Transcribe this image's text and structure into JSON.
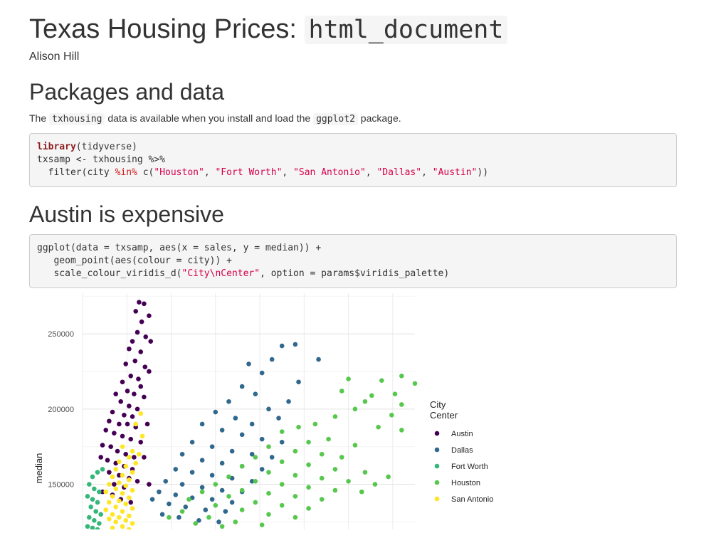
{
  "document": {
    "title": "Texas Housing Prices: ",
    "title_code": "html_document",
    "author": "Alison Hill"
  },
  "section1": {
    "heading": "Packages and data",
    "para_prefix": "The ",
    "para_code1": "txhousing",
    "para_mid": " data is available when you install and load the ",
    "para_code2": "ggplot2",
    "para_suffix": " package.",
    "code": {
      "line1_kw": "library",
      "line1_rest": "(tidyverse)",
      "line2": "txsamp <- txhousing %>%",
      "line3_a": "  filter(city ",
      "line3_in": "%in%",
      "line3_b": " c(",
      "s1": "\"Houston\"",
      "s2": "\"Fort Worth\"",
      "s3": "\"San Antonio\"",
      "s4": "\"Dallas\"",
      "s5": "\"Austin\"",
      "sep": ", ",
      "end": "))"
    }
  },
  "section2": {
    "heading": "Austin is expensive",
    "code": {
      "line1": "ggplot(data = txsamp, aes(x = sales, y = median)) +",
      "line2": "   geom_point(aes(colour = city)) +",
      "line3_a": "   scale_colour_viridis_d(",
      "line3_str": "\"City\\nCenter\"",
      "line3_b": ", option = params$viridis_palette)"
    }
  },
  "chart_data": {
    "type": "scatter",
    "title": "",
    "xlabel": "",
    "ylabel": "median",
    "ylim": [
      120000,
      277000
    ],
    "xlim": [
      0,
      1000
    ],
    "y_ticks": [
      150000,
      200000,
      250000
    ],
    "y_tick_labels": [
      "150000",
      "200000",
      "250000"
    ],
    "grid": true,
    "legend_title": "City\nCenter",
    "legend_title_lines": [
      "City",
      "Center"
    ],
    "legend_position": "right",
    "series": [
      {
        "name": "Austin",
        "color": "#440154",
        "points": [
          [
            160,
            265000
          ],
          [
            170,
            271000
          ],
          [
            185,
            270000
          ],
          [
            200,
            262000
          ],
          [
            178,
            258000
          ],
          [
            165,
            251000
          ],
          [
            190,
            248000
          ],
          [
            150,
            245000
          ],
          [
            140,
            240000
          ],
          [
            175,
            238000
          ],
          [
            205,
            245000
          ],
          [
            158,
            232000
          ],
          [
            130,
            230000
          ],
          [
            188,
            228000
          ],
          [
            145,
            222000
          ],
          [
            200,
            225000
          ],
          [
            168,
            220000
          ],
          [
            120,
            218000
          ],
          [
            175,
            215000
          ],
          [
            135,
            212000
          ],
          [
            155,
            210000
          ],
          [
            185,
            208000
          ],
          [
            100,
            210000
          ],
          [
            115,
            205000
          ],
          [
            140,
            202000
          ],
          [
            165,
            200000
          ],
          [
            90,
            198000
          ],
          [
            125,
            196000
          ],
          [
            150,
            195000
          ],
          [
            80,
            192000
          ],
          [
            110,
            190000
          ],
          [
            135,
            190000
          ],
          [
            160,
            188000
          ],
          [
            195,
            190000
          ],
          [
            70,
            186000
          ],
          [
            95,
            184000
          ],
          [
            120,
            182000
          ],
          [
            145,
            180000
          ],
          [
            175,
            178000
          ],
          [
            60,
            176000
          ],
          [
            85,
            175000
          ],
          [
            105,
            172000
          ],
          [
            130,
            170000
          ],
          [
            155,
            168000
          ],
          [
            185,
            168000
          ],
          [
            55,
            168000
          ],
          [
            75,
            166000
          ],
          [
            100,
            164000
          ],
          [
            125,
            162000
          ],
          [
            150,
            160000
          ],
          [
            80,
            158000
          ],
          [
            110,
            156000
          ],
          [
            140,
            154000
          ],
          [
            165,
            152000
          ],
          [
            200,
            150000
          ],
          [
            95,
            150000
          ],
          [
            125,
            148000
          ],
          [
            60,
            145000
          ],
          [
            90,
            143000
          ],
          [
            115,
            140000
          ],
          [
            145,
            138000
          ]
        ]
      },
      {
        "name": "Dallas",
        "color": "#31688e",
        "points": [
          [
            600,
            242000
          ],
          [
            640,
            243000
          ],
          [
            570,
            233000
          ],
          [
            710,
            233000
          ],
          [
            500,
            230000
          ],
          [
            540,
            224000
          ],
          [
            650,
            218000
          ],
          [
            480,
            215000
          ],
          [
            520,
            210000
          ],
          [
            620,
            205000
          ],
          [
            440,
            205000
          ],
          [
            560,
            200000
          ],
          [
            400,
            198000
          ],
          [
            460,
            194000
          ],
          [
            590,
            194000
          ],
          [
            510,
            190000
          ],
          [
            360,
            190000
          ],
          [
            420,
            186000
          ],
          [
            480,
            183000
          ],
          [
            540,
            180000
          ],
          [
            600,
            178000
          ],
          [
            330,
            178000
          ],
          [
            390,
            175000
          ],
          [
            450,
            172000
          ],
          [
            510,
            170000
          ],
          [
            570,
            168000
          ],
          [
            300,
            170000
          ],
          [
            360,
            166000
          ],
          [
            420,
            164000
          ],
          [
            480,
            162000
          ],
          [
            540,
            160000
          ],
          [
            280,
            160000
          ],
          [
            330,
            158000
          ],
          [
            390,
            156000
          ],
          [
            450,
            154000
          ],
          [
            510,
            152000
          ],
          [
            250,
            152000
          ],
          [
            300,
            150000
          ],
          [
            360,
            148000
          ],
          [
            420,
            146000
          ],
          [
            480,
            145000
          ],
          [
            230,
            145000
          ],
          [
            280,
            143000
          ],
          [
            330,
            141000
          ],
          [
            390,
            140000
          ],
          [
            450,
            138000
          ],
          [
            210,
            140000
          ],
          [
            260,
            137000
          ],
          [
            310,
            135000
          ],
          [
            370,
            133000
          ],
          [
            430,
            132000
          ],
          [
            240,
            130000
          ],
          [
            290,
            128000
          ],
          [
            350,
            126000
          ],
          [
            410,
            125000
          ]
        ]
      },
      {
        "name": "Fort Worth",
        "color": "#35b779",
        "points": [
          [
            30,
            155000
          ],
          [
            45,
            158000
          ],
          [
            60,
            160000
          ],
          [
            20,
            150000
          ],
          [
            35,
            147000
          ],
          [
            50,
            145000
          ],
          [
            15,
            142000
          ],
          [
            30,
            140000
          ],
          [
            45,
            138000
          ],
          [
            25,
            135000
          ],
          [
            40,
            132000
          ],
          [
            55,
            130000
          ],
          [
            20,
            128000
          ],
          [
            35,
            126000
          ],
          [
            50,
            124000
          ],
          [
            15,
            122000
          ],
          [
            30,
            121000
          ],
          [
            45,
            120000
          ]
        ]
      },
      {
        "name": "Houston",
        "color": "#57c84d",
        "points": [
          [
            960,
            222000
          ],
          [
            1000,
            217000
          ],
          [
            900,
            219000
          ],
          [
            800,
            220000
          ],
          [
            940,
            210000
          ],
          [
            870,
            209000
          ],
          [
            780,
            212000
          ],
          [
            850,
            205000
          ],
          [
            960,
            203000
          ],
          [
            930,
            196000
          ],
          [
            820,
            200000
          ],
          [
            760,
            195000
          ],
          [
            700,
            190000
          ],
          [
            650,
            188000
          ],
          [
            890,
            188000
          ],
          [
            960,
            186000
          ],
          [
            600,
            185000
          ],
          [
            740,
            180000
          ],
          [
            680,
            178000
          ],
          [
            820,
            176000
          ],
          [
            560,
            175000
          ],
          [
            640,
            172000
          ],
          [
            720,
            170000
          ],
          [
            780,
            168000
          ],
          [
            520,
            168000
          ],
          [
            600,
            165000
          ],
          [
            680,
            163000
          ],
          [
            760,
            160000
          ],
          [
            850,
            158000
          ],
          [
            480,
            162000
          ],
          [
            560,
            158000
          ],
          [
            640,
            156000
          ],
          [
            720,
            154000
          ],
          [
            800,
            152000
          ],
          [
            880,
            150000
          ],
          [
            440,
            155000
          ],
          [
            520,
            152000
          ],
          [
            600,
            150000
          ],
          [
            680,
            148000
          ],
          [
            760,
            146000
          ],
          [
            840,
            145000
          ],
          [
            920,
            155000
          ],
          [
            400,
            150000
          ],
          [
            480,
            146000
          ],
          [
            560,
            144000
          ],
          [
            640,
            142000
          ],
          [
            720,
            140000
          ],
          [
            360,
            145000
          ],
          [
            440,
            142000
          ],
          [
            520,
            138000
          ],
          [
            600,
            136000
          ],
          [
            680,
            134000
          ],
          [
            320,
            140000
          ],
          [
            400,
            136000
          ],
          [
            480,
            133000
          ],
          [
            560,
            130000
          ],
          [
            640,
            128000
          ],
          [
            300,
            132000
          ],
          [
            380,
            128000
          ],
          [
            460,
            125000
          ],
          [
            540,
            123000
          ],
          [
            260,
            128000
          ],
          [
            340,
            124000
          ],
          [
            420,
            122000
          ]
        ]
      },
      {
        "name": "San Antonio",
        "color": "#fde725",
        "points": [
          [
            120,
            175000
          ],
          [
            150,
            172000
          ],
          [
            170,
            170000
          ],
          [
            140,
            168000
          ],
          [
            110,
            165000
          ],
          [
            160,
            164000
          ],
          [
            130,
            162000
          ],
          [
            100,
            160000
          ],
          [
            150,
            158000
          ],
          [
            120,
            156000
          ],
          [
            90,
            155000
          ],
          [
            140,
            153000
          ],
          [
            110,
            151000
          ],
          [
            80,
            150000
          ],
          [
            130,
            149000
          ],
          [
            100,
            147000
          ],
          [
            150,
            146000
          ],
          [
            70,
            145000
          ],
          [
            120,
            144000
          ],
          [
            90,
            142000
          ],
          [
            140,
            141000
          ],
          [
            110,
            139000
          ],
          [
            80,
            138000
          ],
          [
            130,
            137000
          ],
          [
            100,
            135000
          ],
          [
            150,
            134000
          ],
          [
            70,
            133000
          ],
          [
            120,
            132000
          ],
          [
            90,
            130000
          ],
          [
            140,
            129000
          ],
          [
            110,
            128000
          ],
          [
            80,
            127000
          ],
          [
            130,
            126000
          ],
          [
            100,
            125000
          ],
          [
            150,
            124000
          ],
          [
            120,
            122000
          ],
          [
            90,
            121000
          ],
          [
            140,
            120000
          ],
          [
            175,
            197000
          ],
          [
            160,
            190000
          ],
          [
            180,
            182000
          ]
        ]
      }
    ]
  }
}
